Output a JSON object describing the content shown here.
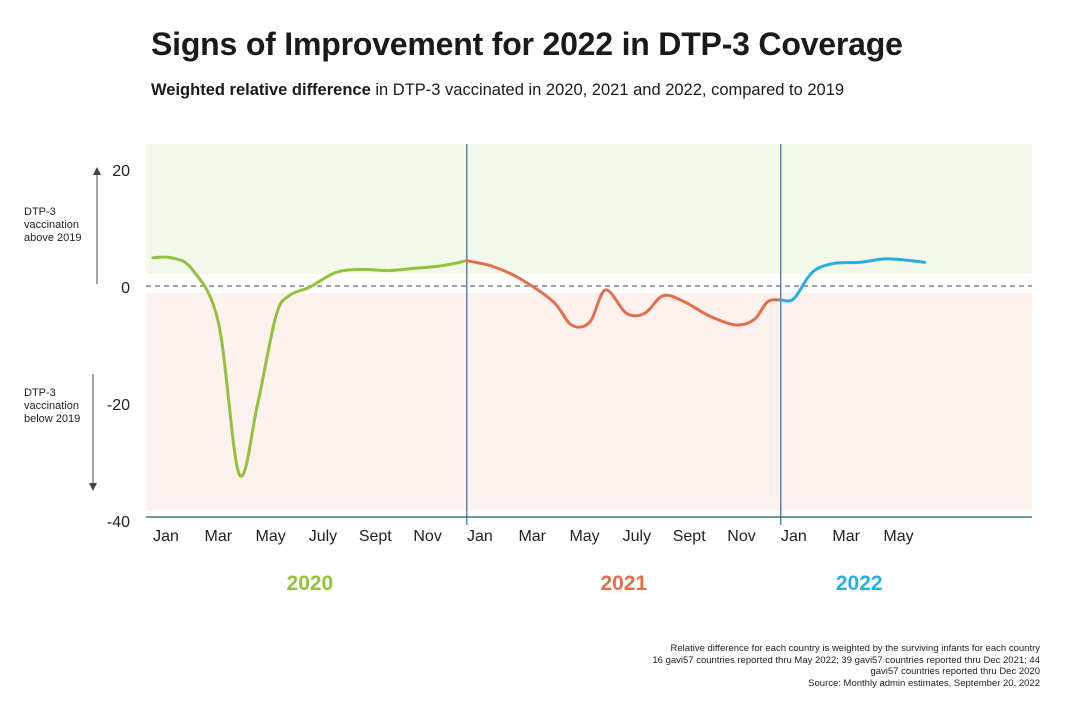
{
  "title": "Signs of Improvement for 2022 in DTP-3 Coverage",
  "subtitle": {
    "bold": "Weighted relative difference",
    "rest": " in DTP-3 vaccinated in 2020, 2021 and 2022, compared to 2019"
  },
  "colors": {
    "y2020": "#93c13e",
    "y2021": "#e0704a",
    "y2022": "#2aaee0",
    "above_zone": "#f4f8ea",
    "below_zone": "#fcf1ee",
    "divider": "#2e6da4",
    "axis": "#3f7f73"
  },
  "chart_data": {
    "type": "line",
    "ylim": [
      -40,
      24
    ],
    "yticks": [
      20,
      0,
      -20,
      -40
    ],
    "month_labels": [
      {
        "label": "Jan",
        "pos": 0
      },
      {
        "label": "Mar",
        "pos": 2
      },
      {
        "label": "May",
        "pos": 4
      },
      {
        "label": "July",
        "pos": 6
      },
      {
        "label": "Sept",
        "pos": 8
      },
      {
        "label": "Nov",
        "pos": 10
      },
      {
        "label": "Jan",
        "pos": 12
      },
      {
        "label": "Mar",
        "pos": 14
      },
      {
        "label": "May",
        "pos": 16
      },
      {
        "label": "July",
        "pos": 18
      },
      {
        "label": "Sept",
        "pos": 20
      },
      {
        "label": "Nov",
        "pos": 22
      },
      {
        "label": "Jan",
        "pos": 24
      },
      {
        "label": "Mar",
        "pos": 26
      },
      {
        "label": "May",
        "pos": 28
      }
    ],
    "year_dividers": [
      11.5,
      23.5
    ],
    "year_labels": [
      {
        "label": "2020",
        "pos": 5.5,
        "color_key": "y2020"
      },
      {
        "label": "2021",
        "pos": 17.5,
        "color_key": "y2021"
      },
      {
        "label": "2022",
        "pos": 26.5,
        "color_key": "y2022"
      }
    ],
    "annotations": [
      {
        "lines": [
          "DTP-3",
          "vaccination",
          "above 2019"
        ],
        "arrow": "up"
      },
      {
        "lines": [
          "DTP-3",
          "vaccination",
          "below 2019"
        ],
        "arrow": "down"
      }
    ],
    "series": [
      {
        "color_key": "y2020",
        "points": [
          [
            -0.5,
            5
          ],
          [
            0.2,
            5
          ],
          [
            1.0,
            3
          ],
          [
            2.0,
            -6
          ],
          [
            2.8,
            -32
          ],
          [
            3.5,
            -20
          ],
          [
            4.2,
            -5
          ],
          [
            4.7,
            -1.5
          ],
          [
            5.5,
            0
          ],
          [
            6.5,
            2.5
          ],
          [
            7.5,
            3
          ],
          [
            8.5,
            2.8
          ],
          [
            9.5,
            3.2
          ],
          [
            10.5,
            3.6
          ],
          [
            11.5,
            4.5
          ]
        ]
      },
      {
        "color_key": "y2021",
        "points": [
          [
            11.5,
            4.5
          ],
          [
            12.5,
            3.5
          ],
          [
            13.5,
            1.5
          ],
          [
            14.8,
            -2.5
          ],
          [
            15.5,
            -6.5
          ],
          [
            16.2,
            -6.0
          ],
          [
            16.8,
            -0.5
          ],
          [
            17.6,
            -4.5
          ],
          [
            18.3,
            -4.5
          ],
          [
            19.0,
            -1.5
          ],
          [
            19.8,
            -2.5
          ],
          [
            20.8,
            -5
          ],
          [
            21.8,
            -6.5
          ],
          [
            22.5,
            -5.5
          ],
          [
            23.0,
            -2.5
          ],
          [
            23.5,
            -2.2
          ]
        ]
      },
      {
        "color_key": "y2022",
        "points": [
          [
            23.5,
            -2.2
          ],
          [
            24.0,
            -2.0
          ],
          [
            24.7,
            2.5
          ],
          [
            25.5,
            4
          ],
          [
            26.5,
            4.2
          ],
          [
            27.5,
            4.8
          ],
          [
            28.5,
            4.5
          ],
          [
            29.0,
            4.2
          ]
        ]
      }
    ]
  },
  "footnotes": [
    "Relative difference for each country is weighted by the surviving infants for each country",
    "16 gavi57 countries reported thru May 2022; 39 gavi57 countries reported thru Dec 2021; 44 gavi57 countries reported thru Dec 2020",
    "Source: Monthly admin estimates, September 20, 2022"
  ]
}
